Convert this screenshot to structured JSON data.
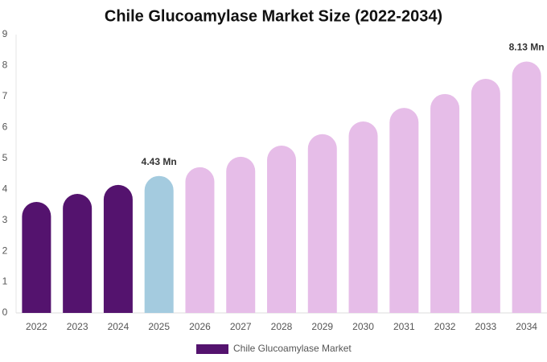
{
  "chart_data": {
    "type": "bar",
    "title": "Chile Glucoamylase Market Size (2022-2034)",
    "categories": [
      "2022",
      "2023",
      "2024",
      "2025",
      "2026",
      "2027",
      "2028",
      "2029",
      "2030",
      "2031",
      "2032",
      "2033",
      "2034"
    ],
    "series": [
      {
        "name": "Chile Glucoamylase Market",
        "color": "#54136e",
        "colors": [
          "#54136e",
          "#54136e",
          "#54136e",
          "#a4cbdf",
          "#e6bde8",
          "#e6bde8",
          "#e6bde8",
          "#e6bde8",
          "#e6bde8",
          "#e6bde8",
          "#e6bde8",
          "#e6bde8",
          "#e6bde8"
        ],
        "values": [
          3.59,
          3.85,
          4.14,
          4.43,
          4.71,
          5.05,
          5.41,
          5.78,
          6.19,
          6.63,
          7.08,
          7.57,
          8.13
        ],
        "value_labels": [
          null,
          null,
          null,
          "4.43 Mn",
          null,
          null,
          null,
          null,
          null,
          null,
          null,
          null,
          "8.13 Mn"
        ]
      }
    ],
    "ylim": [
      0,
      9
    ],
    "yticks": [
      0,
      1,
      2,
      3,
      4,
      5,
      6,
      7,
      8,
      9
    ],
    "grid": false,
    "legend": "bottom"
  }
}
